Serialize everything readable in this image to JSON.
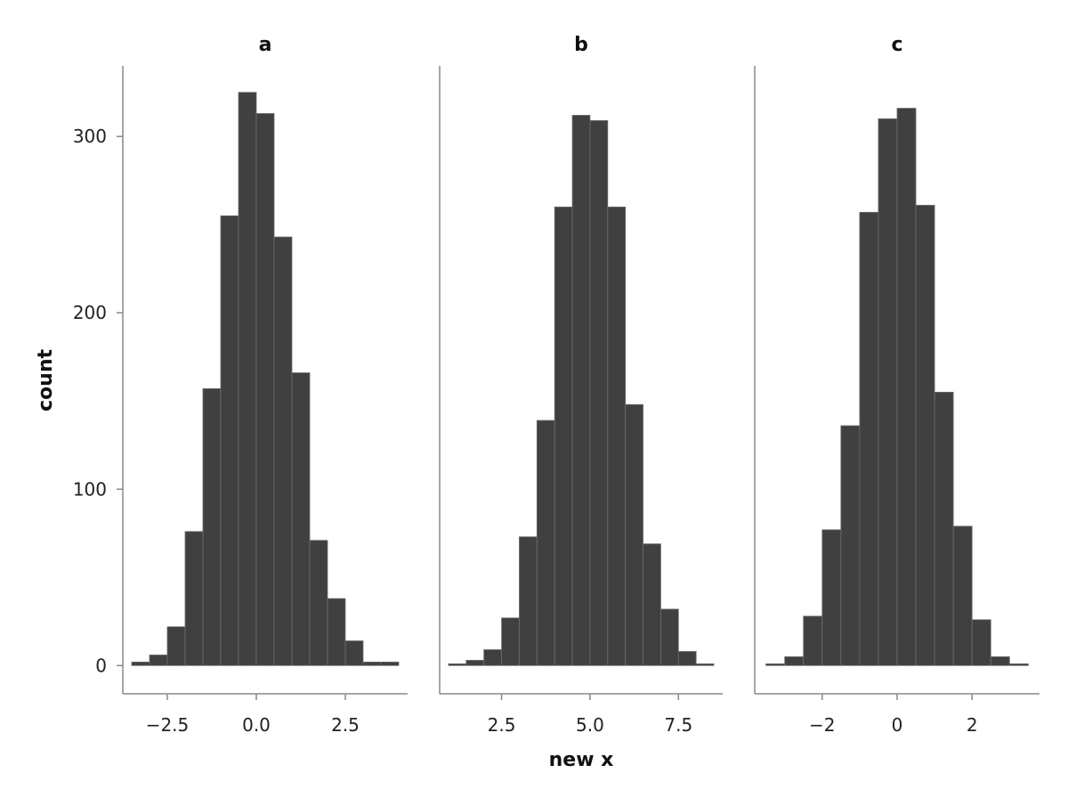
{
  "chart_data": {
    "type": "bar",
    "xlabel": "new x",
    "ylabel": "count",
    "ylim": [
      -16,
      340
    ],
    "yticks": [
      0,
      100,
      200,
      300
    ],
    "bar_color": "#404040",
    "facets": [
      {
        "title": "a",
        "xlim": [
          -3.75,
          4.25
        ],
        "xticks": [
          -2.5,
          0.0,
          2.5
        ],
        "xtick_labels": [
          "−2.5",
          "0.0",
          "2.5"
        ],
        "bin_edges": [
          -3.5,
          -3.0,
          -2.5,
          -2.0,
          -1.5,
          -1.0,
          -0.5,
          0.0,
          0.5,
          1.0,
          1.5,
          2.0,
          2.5,
          3.0,
          3.5,
          4.0
        ],
        "counts": [
          2,
          6,
          22,
          76,
          157,
          255,
          325,
          313,
          243,
          166,
          71,
          38,
          14,
          2,
          2
        ]
      },
      {
        "title": "b",
        "xlim": [
          0.75,
          8.75
        ],
        "xticks": [
          2.5,
          5.0,
          7.5
        ],
        "xtick_labels": [
          "2.5",
          "5.0",
          "7.5"
        ],
        "bin_edges": [
          1.0,
          1.5,
          2.0,
          2.5,
          3.0,
          3.5,
          4.0,
          4.5,
          5.0,
          5.5,
          6.0,
          6.5,
          7.0,
          7.5,
          8.0,
          8.5
        ],
        "counts": [
          1,
          3,
          9,
          27,
          73,
          139,
          260,
          312,
          309,
          260,
          148,
          69,
          32,
          8,
          1
        ]
      },
      {
        "title": "c",
        "xlim": [
          -3.8,
          3.8
        ],
        "xticks": [
          -2,
          0,
          2
        ],
        "xtick_labels": [
          "−2",
          "0",
          "2"
        ],
        "bin_edges": [
          -3.5,
          -3.0,
          -2.5,
          -2.0,
          -1.5,
          -1.0,
          -0.5,
          0.0,
          0.5,
          1.0,
          1.5,
          2.0,
          2.5,
          3.0,
          3.5
        ],
        "counts": [
          1,
          5,
          28,
          77,
          136,
          257,
          310,
          316,
          261,
          155,
          79,
          26,
          5,
          1
        ]
      }
    ]
  }
}
